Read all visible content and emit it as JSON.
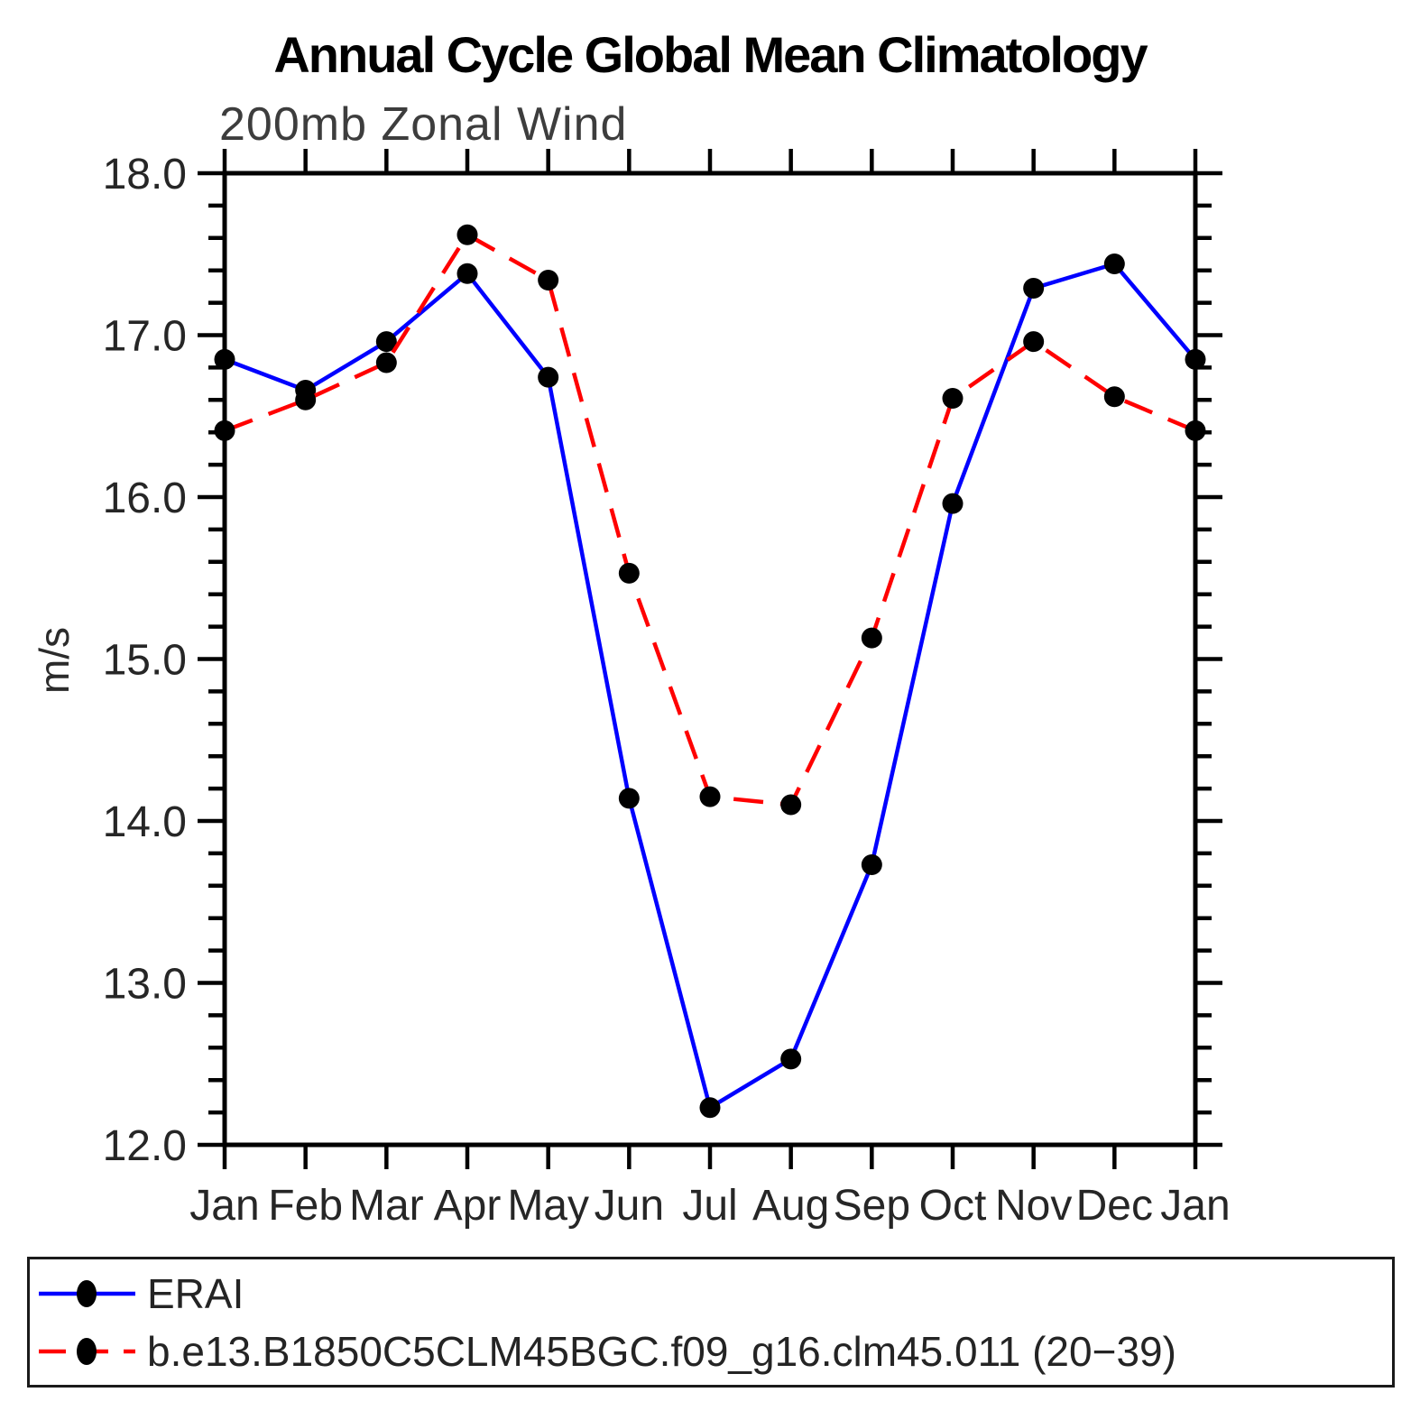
{
  "title": "Annual Cycle Global Mean Climatology",
  "subtitle": "200mb Zonal Wind",
  "chart_data": {
    "type": "line",
    "title": "Annual Cycle Global Mean Climatology",
    "subtitle": "200mb Zonal Wind",
    "xlabel": "",
    "ylabel": "m/s",
    "ylim": [
      12.0,
      18.0
    ],
    "ytick_step": 1.0,
    "yminor_step": 0.2,
    "ytick_labels": [
      "12.0",
      "13.0",
      "14.0",
      "15.0",
      "16.0",
      "17.0",
      "18.0"
    ],
    "categories": [
      "Jan",
      "Feb",
      "Mar",
      "Apr",
      "May",
      "Jun",
      "Jul",
      "Aug",
      "Sep",
      "Oct",
      "Nov",
      "Dec",
      "Jan"
    ],
    "grid": false,
    "legend_position": "bottom-box",
    "axis_color": "#000000",
    "marker_color": "#000000",
    "series": [
      {
        "name": "ERAI",
        "color": "#0000ff",
        "line_style": "solid",
        "marker": "circle",
        "values": [
          16.85,
          16.66,
          16.96,
          17.38,
          16.74,
          14.14,
          12.23,
          12.53,
          13.73,
          15.96,
          17.29,
          17.44,
          16.85
        ]
      },
      {
        "name": "b.e13.B1850C5CLM45BGC.f09_g16.clm45.011 (20−39)",
        "color": "#ff0000",
        "line_style": "dashed",
        "marker": "circle",
        "values": [
          16.41,
          16.6,
          16.83,
          17.62,
          17.34,
          15.53,
          14.15,
          14.1,
          15.13,
          16.61,
          16.96,
          16.62,
          16.41
        ]
      }
    ]
  }
}
